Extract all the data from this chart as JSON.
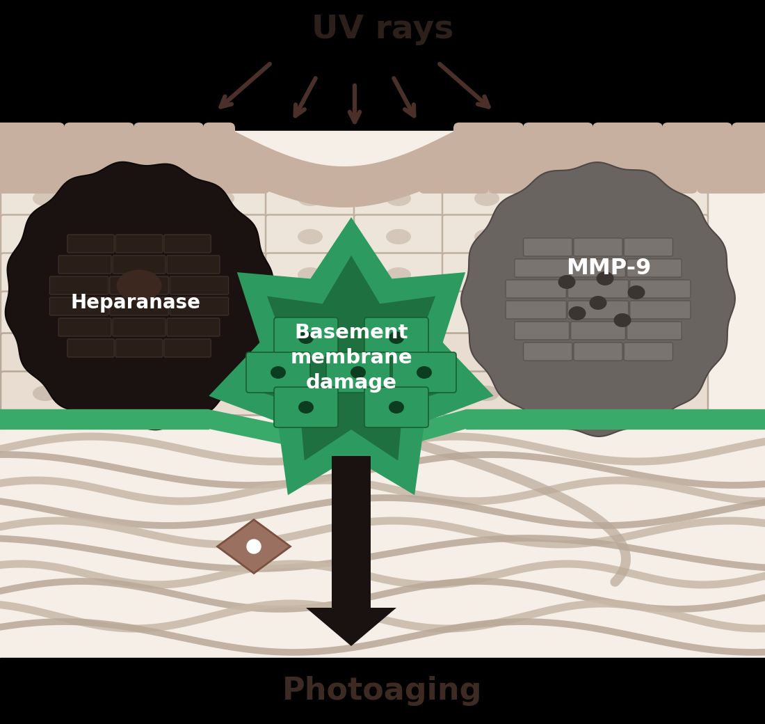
{
  "bg_color": "#000000",
  "skin_bg": "#f5efe8",
  "uv_text": "UV rays",
  "uv_text_color": "#2d1f1a",
  "uv_arrow_color": "#4a3028",
  "photoaging_text": "Photoaging",
  "photoaging_color": "#3d2a22",
  "heparanase_color": "#1a1210",
  "heparanase_text": "Heparanase",
  "mmp9_color": "#6a6460",
  "mmp9_text": "MMP-9",
  "bm_damage_text": "Basement\nmembrane\ndamage",
  "bm_damage_star_color": "#2d8a5a",
  "bm_damage_text_color": "#ffffff",
  "stripe_color": "#c8b0a0",
  "cell_color": "#ede5da",
  "cell_border": "#c0b0a0",
  "green_band_color": "#3aaa6a",
  "down_arrow_color": "#1a1210",
  "dermis_fiber_color": "#c8b8a8",
  "dermis_fiber_color2": "#b8a898"
}
